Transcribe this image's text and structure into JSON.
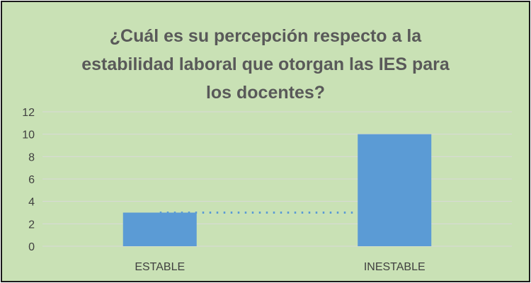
{
  "chart_data": {
    "type": "bar",
    "title_lines": [
      "¿Cuál es su percepción respecto a la",
      "estabilidad laboral que otorgan las IES para",
      "los docentes?"
    ],
    "categories": [
      "ESTABLE",
      "INESTABLE"
    ],
    "values": [
      3,
      10
    ],
    "ylim": [
      0,
      12
    ],
    "yticks": [
      0,
      2,
      4,
      6,
      8,
      10,
      12
    ],
    "grid": true,
    "trendline": "dotted",
    "colors": {
      "background": "#c9e1b5",
      "bar": "#5b9bd5",
      "grid": "#d9d9d9",
      "text": "#595959"
    }
  }
}
